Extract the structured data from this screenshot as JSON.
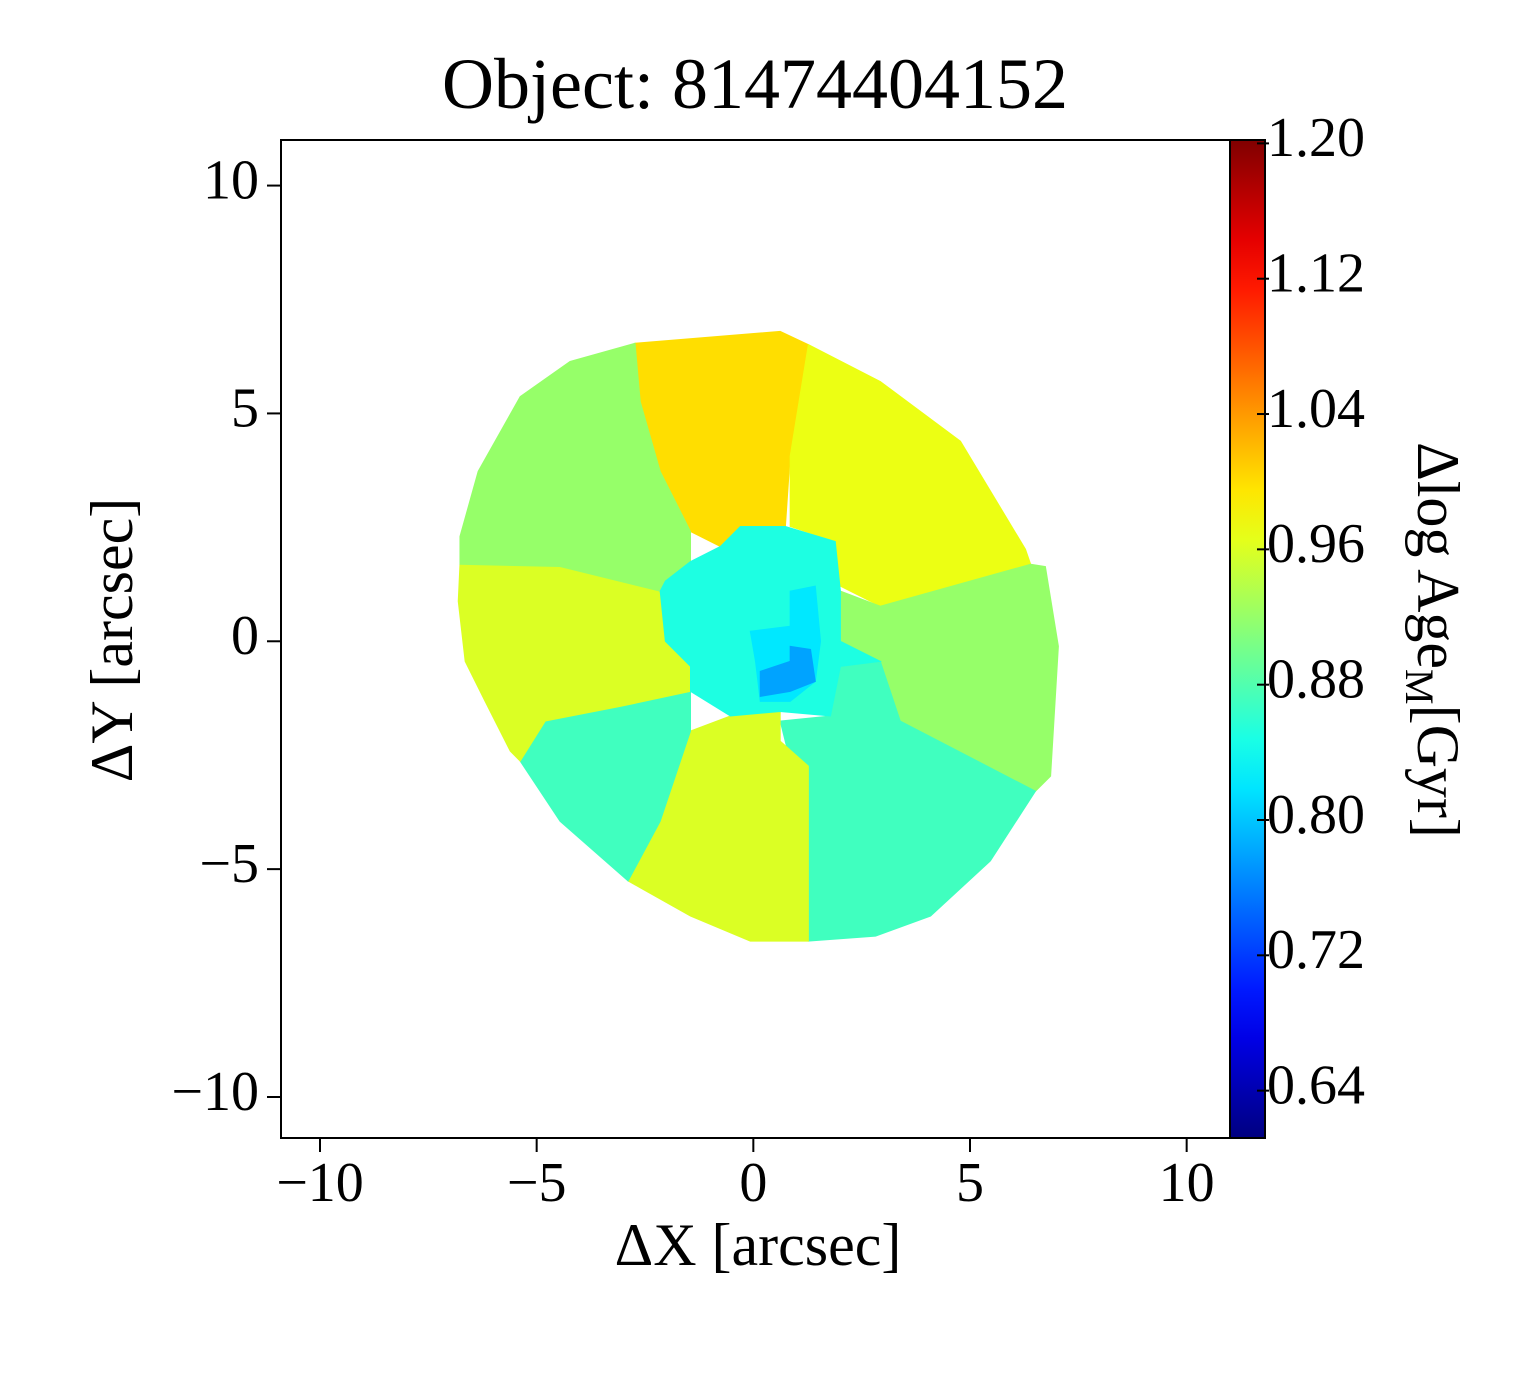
{
  "chart_data": {
    "type": "map",
    "title": "Object: 81474404152",
    "xlabel": "ΔX [arcsec]",
    "ylabel": "ΔY [arcsec]",
    "colorbar_label": {
      "main": "Δlog Age",
      "sub": "M",
      "unit": "[Gyr]"
    },
    "colormap": "jet",
    "xlim": [
      -10.9,
      11.0
    ],
    "ylim": [
      -10.9,
      11.0
    ],
    "xticks": [
      {
        "value": -10,
        "label": "−10"
      },
      {
        "value": -5,
        "label": "−5"
      },
      0,
      5,
      10
    ],
    "yticks": [
      {
        "value": -10,
        "label": "−10"
      },
      {
        "value": -5,
        "label": "−5"
      },
      0,
      5,
      10
    ],
    "clim": [
      0.612,
      1.202
    ],
    "cticks": [
      {
        "value": 0.64,
        "label": "0.64"
      },
      {
        "value": 0.72,
        "label": "0.72"
      },
      {
        "value": 0.8,
        "label": "0.80"
      },
      {
        "value": 0.88,
        "label": "0.88"
      },
      {
        "value": 0.96,
        "label": "0.96"
      },
      {
        "value": 1.04,
        "label": "1.04"
      },
      {
        "value": 1.12,
        "label": "1.12"
      },
      {
        "value": 1.2,
        "label": "1.20"
      }
    ],
    "regions": [
      {
        "value": 1.0,
        "polygon": [
          [
            -2.73,
            6.54
          ],
          [
            0.62,
            6.8
          ],
          [
            1.27,
            6.51
          ],
          [
            0.85,
            4.06
          ],
          [
            0.74,
            2.52
          ],
          [
            -0.3,
            2.52
          ],
          [
            -0.76,
            2.08
          ],
          [
            -1.45,
            2.41
          ],
          [
            -2.15,
            3.73
          ],
          [
            -2.61,
            5.26
          ]
        ]
      },
      {
        "value": 0.97,
        "polygon": [
          [
            1.27,
            6.51
          ],
          [
            2.93,
            5.7
          ],
          [
            4.78,
            4.39
          ],
          [
            6.28,
            2.02
          ],
          [
            6.4,
            1.69
          ],
          [
            2.93,
            0.77
          ],
          [
            2.01,
            1.21
          ],
          [
            1.89,
            2.19
          ],
          [
            0.85,
            2.52
          ],
          [
            0.85,
            4.06
          ]
        ]
      },
      {
        "value": 0.92,
        "polygon": [
          [
            6.4,
            1.69
          ],
          [
            6.74,
            1.64
          ],
          [
            7.04,
            -0.11
          ],
          [
            6.86,
            -2.96
          ],
          [
            6.51,
            -3.29
          ],
          [
            3.39,
            -1.75
          ],
          [
            2.93,
            -0.44
          ],
          [
            2.01,
            0
          ],
          [
            2.01,
            1.1
          ],
          [
            2.93,
            0.77
          ]
        ]
      },
      {
        "value": 0.87,
        "polygon": [
          [
            6.51,
            -3.29
          ],
          [
            5.47,
            -4.82
          ],
          [
            4.09,
            -6.03
          ],
          [
            2.82,
            -6.47
          ],
          [
            1.27,
            -6.58
          ],
          [
            1.27,
            -2.74
          ],
          [
            0.85,
            -2.63
          ],
          [
            0.62,
            -1.75
          ],
          [
            1.78,
            -1.64
          ],
          [
            2.01,
            -0.55
          ],
          [
            2.93,
            -0.44
          ],
          [
            3.39,
            -1.75
          ]
        ]
      },
      {
        "value": 0.96,
        "polygon": [
          [
            1.27,
            -6.58
          ],
          [
            -0.07,
            -6.58
          ],
          [
            -1.45,
            -6.03
          ],
          [
            -2.89,
            -5.26
          ],
          [
            -2.15,
            -3.95
          ],
          [
            -1.45,
            -1.97
          ],
          [
            -0.53,
            -1.64
          ],
          [
            0.62,
            -1.54
          ],
          [
            0.62,
            -2.19
          ],
          [
            1.27,
            -2.74
          ]
        ]
      },
      {
        "value": 0.87,
        "polygon": [
          [
            -2.89,
            -5.26
          ],
          [
            -4.46,
            -3.95
          ],
          [
            -5.38,
            -2.63
          ],
          [
            -4.8,
            -1.75
          ],
          [
            -3.07,
            -1.43
          ],
          [
            -1.45,
            -1.1
          ],
          [
            -1.45,
            -1.97
          ],
          [
            -2.15,
            -3.95
          ]
        ]
      },
      {
        "value": 0.96,
        "polygon": [
          [
            -5.38,
            -2.63
          ],
          [
            -5.61,
            -2.41
          ],
          [
            -6.19,
            -1.32
          ],
          [
            -6.65,
            -0.44
          ],
          [
            -6.81,
            0.88
          ],
          [
            -6.77,
            1.69
          ],
          [
            -4.46,
            1.64
          ],
          [
            -2.15,
            1.1
          ],
          [
            -2.03,
            0
          ],
          [
            -1.45,
            -0.55
          ],
          [
            -1.45,
            -1.1
          ],
          [
            -3.07,
            -1.43
          ],
          [
            -4.8,
            -1.75
          ]
        ]
      },
      {
        "value": 0.92,
        "polygon": [
          [
            -6.77,
            1.69
          ],
          [
            -6.77,
            2.3
          ],
          [
            -6.35,
            3.73
          ],
          [
            -5.38,
            5.37
          ],
          [
            -4.23,
            6.14
          ],
          [
            -2.73,
            6.54
          ],
          [
            -2.61,
            5.26
          ],
          [
            -2.15,
            3.73
          ],
          [
            -1.45,
            2.41
          ],
          [
            -1.45,
            1.75
          ],
          [
            -2.03,
            1.32
          ],
          [
            -2.15,
            1.1
          ],
          [
            -4.46,
            1.64
          ]
        ]
      },
      {
        "value": 0.85,
        "polygon": [
          [
            -1.45,
            1.75
          ],
          [
            -0.76,
            2.08
          ],
          [
            -0.3,
            2.52
          ],
          [
            0.74,
            2.52
          ],
          [
            1.89,
            2.19
          ],
          [
            2.01,
            1.1
          ],
          [
            2.01,
            0
          ],
          [
            2.93,
            -0.44
          ],
          [
            2.01,
            -0.55
          ],
          [
            1.78,
            -1.64
          ],
          [
            0.62,
            -1.54
          ],
          [
            -0.53,
            -1.64
          ],
          [
            -1.45,
            -1.1
          ],
          [
            -1.45,
            -0.55
          ],
          [
            -2.03,
            0
          ],
          [
            -2.15,
            1.1
          ],
          [
            -2.03,
            1.32
          ]
        ]
      },
      {
        "value": 0.82,
        "polygon": [
          [
            -0.07,
            0.22
          ],
          [
            0.85,
            0.33
          ],
          [
            0.85,
            1.1
          ],
          [
            1.43,
            1.21
          ],
          [
            1.55,
            0
          ],
          [
            1.43,
            -0.88
          ],
          [
            0.85,
            -1.32
          ],
          [
            0.16,
            -1.32
          ],
          [
            0.05,
            -0.44
          ]
        ]
      },
      {
        "value": 0.78,
        "polygon": [
          [
            0.16,
            -0.66
          ],
          [
            0.85,
            -0.44
          ],
          [
            0.85,
            -0.11
          ],
          [
            1.32,
            -0.18
          ],
          [
            1.43,
            -0.88
          ],
          [
            0.85,
            -1.1
          ],
          [
            0.16,
            -1.21
          ]
        ]
      }
    ]
  }
}
